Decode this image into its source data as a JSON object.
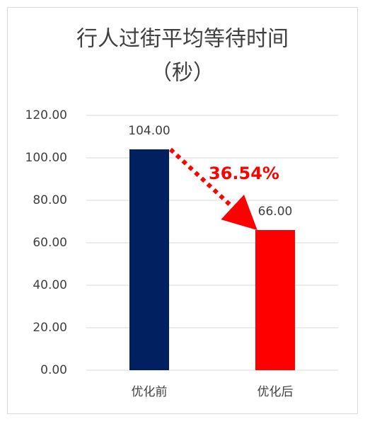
{
  "chart_data": {
    "type": "bar",
    "title": [
      "行人过街平均等待时间",
      "（秒）"
    ],
    "categories": [
      "优化前",
      "优化后"
    ],
    "values": [
      104,
      66
    ],
    "value_labels": [
      "104.00",
      "66.00"
    ],
    "colors": [
      "#002060",
      "#ff0000"
    ],
    "ylim": [
      0,
      120
    ],
    "yticks": [
      {
        "value": 0,
        "label": "0.00"
      },
      {
        "value": 20,
        "label": "20.00"
      },
      {
        "value": 40,
        "label": "40.00"
      },
      {
        "value": 60,
        "label": "60.00"
      },
      {
        "value": 80,
        "label": "80.00"
      },
      {
        "value": 100,
        "label": "100.00"
      },
      {
        "value": 120,
        "label": "120.00"
      }
    ],
    "grid": true,
    "annotation": "36.54%",
    "annotation_color": "#ff0000"
  }
}
